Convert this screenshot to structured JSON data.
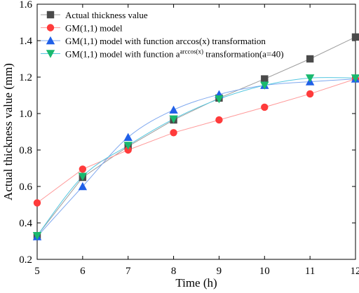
{
  "chart_data": {
    "type": "line",
    "title": "",
    "xlabel": "Time (h)",
    "ylabel": "Actual thickness value (mm)",
    "xlim": [
      5,
      12
    ],
    "ylim": [
      0.2,
      1.6
    ],
    "x_ticks": [
      5,
      6,
      7,
      8,
      9,
      10,
      11,
      12
    ],
    "y_ticks": [
      0.2,
      0.4,
      0.6,
      0.8,
      1.0,
      1.2,
      1.4,
      1.6
    ],
    "x_tick_labels": [
      "5",
      "6",
      "7",
      "8",
      "9",
      "10",
      "11",
      "12"
    ],
    "y_tick_labels": [
      "0.2",
      "0.4",
      "0.6",
      "0.8",
      "1.0",
      "1.2",
      "1.4",
      "1.6"
    ],
    "grid": false,
    "legend_position": "top-left",
    "x": [
      5,
      6,
      7,
      8,
      9,
      10,
      11,
      12
    ],
    "series": [
      {
        "name": "Actual thickness value",
        "marker": "square",
        "color": "#4a4a4a",
        "line_color": "#9e9e9e",
        "smooth": false,
        "values": [
          0.33,
          0.65,
          0.82,
          0.965,
          1.085,
          1.19,
          1.3,
          1.42
        ]
      },
      {
        "name": "GM(1,1) model",
        "marker": "circle",
        "color": "#ff3b3b",
        "line_color": "#ff9a9a",
        "smooth": false,
        "values": [
          0.51,
          0.695,
          0.8,
          0.895,
          0.965,
          1.035,
          1.108,
          1.19
        ]
      },
      {
        "name": "GM(1,1) model with function arccos(x) transformation",
        "marker": "triangle-up",
        "color": "#2060e8",
        "line_color": "#7fa8ef",
        "smooth": true,
        "values": [
          0.325,
          0.6,
          0.87,
          1.02,
          1.105,
          1.155,
          1.175,
          1.19
        ]
      },
      {
        "name": "GM(1,1) model with function aarccos(x) transformation(a=40)",
        "name_parts": {
          "prefix": "GM(1,1) model with function a",
          "sup": "arccos(x)",
          "suffix": " transformation(a=40)"
        },
        "marker": "triangle-down",
        "color": "#19b96e",
        "line_color": "#54c7e0",
        "smooth": true,
        "values": [
          0.33,
          0.655,
          0.825,
          0.97,
          1.08,
          1.155,
          1.195,
          1.195
        ]
      }
    ]
  }
}
